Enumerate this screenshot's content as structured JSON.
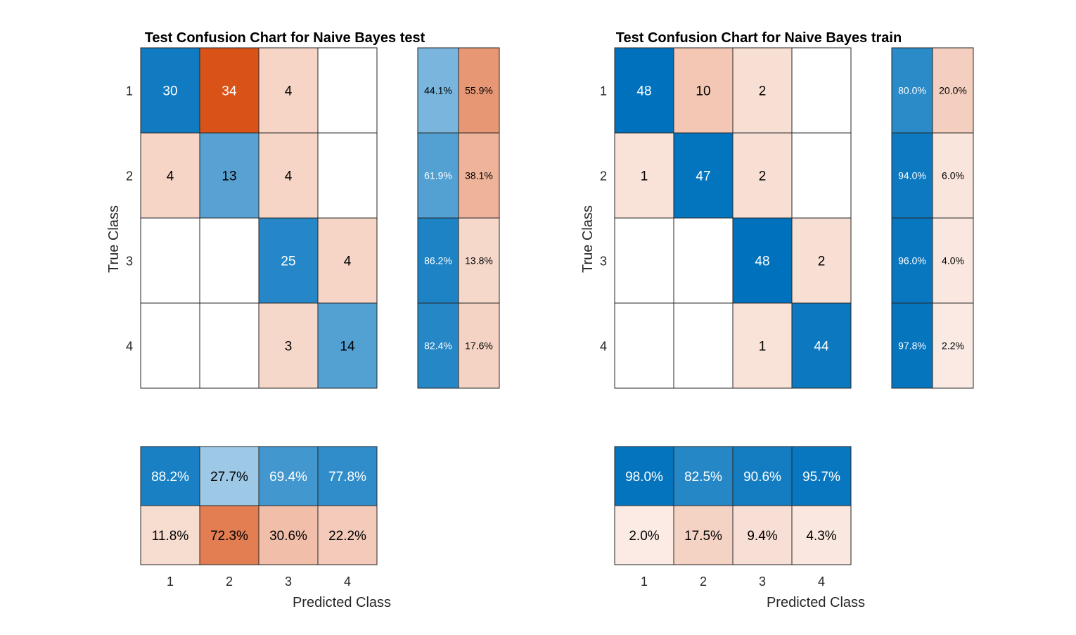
{
  "chart_data": [
    {
      "type": "heatmap",
      "subtype": "confusion-chart",
      "title": "Test Confusion Chart for Naive Bayes test",
      "xlabel": "Predicted Class",
      "ylabel": "True Class",
      "classes": [
        "1",
        "2",
        "3",
        "4"
      ],
      "matrix": [
        [
          30,
          34,
          4,
          null
        ],
        [
          4,
          13,
          4,
          null
        ],
        [
          null,
          null,
          25,
          4
        ],
        [
          null,
          null,
          3,
          14
        ]
      ],
      "row_summary": [
        [
          "44.1%",
          "55.9%"
        ],
        [
          "61.9%",
          "38.1%"
        ],
        [
          "86.2%",
          "13.8%"
        ],
        [
          "82.4%",
          "17.6%"
        ]
      ],
      "column_summary": [
        [
          "88.2%",
          "27.7%",
          "69.4%",
          "77.8%"
        ],
        [
          "11.8%",
          "72.3%",
          "30.6%",
          "22.2%"
        ]
      ]
    },
    {
      "type": "heatmap",
      "subtype": "confusion-chart",
      "title": "Test Confusion Chart for Naive Bayes train",
      "xlabel": "Predicted Class",
      "ylabel": "True Class",
      "classes": [
        "1",
        "2",
        "3",
        "4"
      ],
      "matrix": [
        [
          48,
          10,
          2,
          null
        ],
        [
          1,
          47,
          2,
          null
        ],
        [
          null,
          null,
          48,
          2
        ],
        [
          null,
          null,
          1,
          44
        ]
      ],
      "row_summary": [
        [
          "80.0%",
          "20.0%"
        ],
        [
          "94.0%",
          "6.0%"
        ],
        [
          "96.0%",
          "4.0%"
        ],
        [
          "97.8%",
          "2.2%"
        ]
      ],
      "column_summary": [
        [
          "98.0%",
          "82.5%",
          "90.6%",
          "95.7%"
        ],
        [
          "2.0%",
          "17.5%",
          "9.4%",
          "4.3%"
        ]
      ]
    }
  ],
  "colors": {
    "blue": "#0072BD",
    "orange": "#D95319",
    "text_dark": "#000000",
    "text_light": "#ffffff",
    "grid_line": "#262626",
    "label": "#262626"
  }
}
